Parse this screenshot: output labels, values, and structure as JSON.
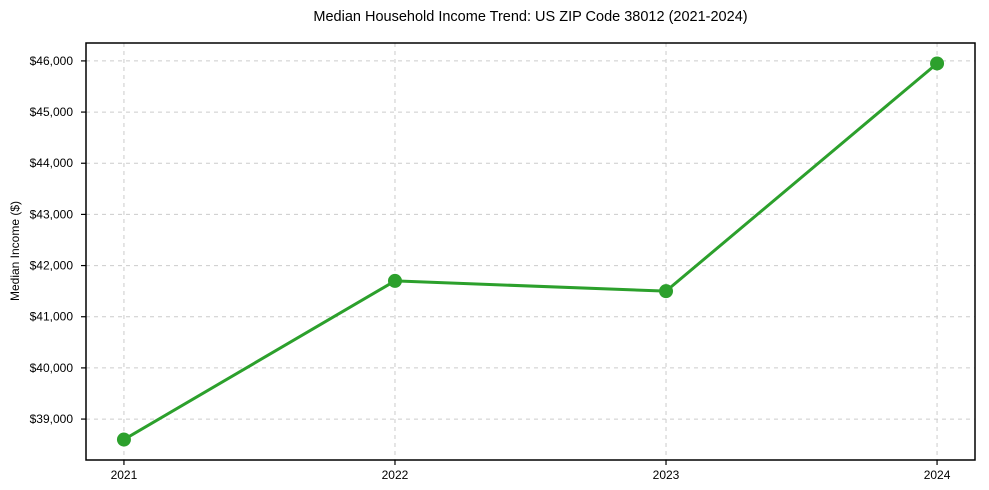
{
  "chart_data": {
    "type": "line",
    "title": "Median Household Income Trend: US ZIP Code 38012 (2021-2024)",
    "xlabel": "",
    "ylabel": "Median Income ($)",
    "x": [
      2021,
      2022,
      2023,
      2024
    ],
    "values": [
      38600,
      41700,
      41500,
      45950
    ],
    "xtick_labels": [
      "2021",
      "2022",
      "2023",
      "2024"
    ],
    "ytick_values": [
      39000,
      40000,
      41000,
      42000,
      43000,
      44000,
      45000,
      46000
    ],
    "ytick_labels": [
      "$39,000",
      "$40,000",
      "$41,000",
      "$42,000",
      "$43,000",
      "$44,000",
      "$45,000",
      "$46,000"
    ],
    "xlim": [
      2020.86,
      2024.14
    ],
    "ylim": [
      38200,
      46350
    ],
    "grid": true,
    "grid_style": "dashed",
    "legend": "none",
    "line_color": "#2ca02c",
    "marker": "circle",
    "grid_color": "#cccccc",
    "axis_color": "#000000",
    "background_color": "#ffffff"
  }
}
